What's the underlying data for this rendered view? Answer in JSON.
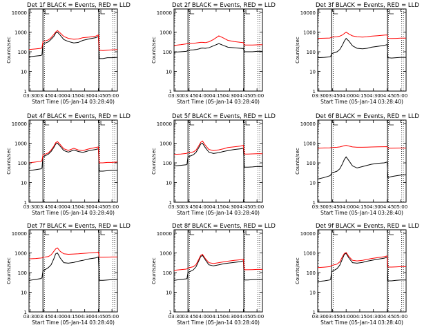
{
  "figure": {
    "xlabel": "Start Time (05-Jan-14 03:28:40)",
    "ylabel": "Counts/sec",
    "x_ticks": [
      "03:30",
      "03:45",
      "04:00",
      "04:15",
      "04:30",
      "04:45",
      "05:00"
    ],
    "y_ticks": [
      "1",
      "10",
      "100",
      "1000",
      "10000"
    ],
    "colors": {
      "events": "#000000",
      "lld": "#ff0000",
      "axes": "#000000",
      "background": "#ffffff"
    }
  },
  "chart_data": [
    {
      "type": "line",
      "title": "Det 1f BLACK = Events, RED = LLD",
      "xlabel": "Start Time (05-Jan-14 03:28:40)",
      "ylabel": "Counts/sec",
      "y_scale": "log",
      "ylim": [
        1,
        15000
      ],
      "xlim": [
        "03:28:40",
        "05:06:00"
      ],
      "x": [
        "03:28:40",
        "03:36",
        "03:42",
        "03:43",
        "03:44",
        "03:50",
        "03:53",
        "03:56",
        "03:58",
        "04:00",
        "04:03",
        "04:07",
        "04:12",
        "04:18",
        "04:23",
        "04:28",
        "04:35",
        "04:42",
        "04:45",
        "04:46",
        "04:50",
        "04:55",
        "05:00",
        "05:06"
      ],
      "series": [
        {
          "name": "Events",
          "color": "#000000",
          "values": [
            55,
            60,
            65,
            70,
            250,
            320,
            430,
            600,
            900,
            1000,
            700,
            420,
            330,
            280,
            300,
            380,
            450,
            520,
            600,
            45,
            45,
            50,
            50,
            52
          ]
        },
        {
          "name": "LLD",
          "color": "#ff0000",
          "values": [
            130,
            140,
            150,
            160,
            330,
            400,
            520,
            750,
            1000,
            1200,
            900,
            600,
            480,
            430,
            450,
            520,
            560,
            620,
            720,
            120,
            115,
            120,
            125,
            130
          ]
        }
      ]
    },
    {
      "type": "line",
      "title": "Det 2f BLACK = Events, RED = LLD",
      "xlabel": "Start Time (05-Jan-14 03:28:40)",
      "ylabel": "Counts/sec",
      "y_scale": "log",
      "ylim": [
        1,
        15000
      ],
      "xlim": [
        "03:28:40",
        "05:06:00"
      ],
      "x": [
        "03:28:40",
        "03:36",
        "03:42",
        "03:43",
        "03:44",
        "03:50",
        "03:53",
        "03:56",
        "03:58",
        "04:00",
        "04:03",
        "04:07",
        "04:12",
        "04:18",
        "04:23",
        "04:28",
        "04:35",
        "04:42",
        "04:45",
        "04:46",
        "04:50",
        "04:55",
        "05:00",
        "05:06"
      ],
      "series": [
        {
          "name": "Events",
          "color": "#000000",
          "values": [
            95,
            100,
            105,
            108,
            120,
            125,
            130,
            140,
            150,
            155,
            150,
            160,
            200,
            260,
            210,
            170,
            160,
            150,
            145,
            100,
            100,
            100,
            105,
            105
          ]
        },
        {
          "name": "LLD",
          "color": "#ff0000",
          "values": [
            210,
            230,
            250,
            260,
            260,
            270,
            280,
            290,
            300,
            300,
            290,
            320,
            420,
            650,
            500,
            380,
            330,
            300,
            290,
            220,
            220,
            220,
            225,
            230
          ]
        }
      ]
    },
    {
      "type": "line",
      "title": "Det 3f BLACK = Events, RED = LLD",
      "xlabel": "Start Time (05-Jan-14 03:28:40)",
      "ylabel": "Counts/sec",
      "y_scale": "log",
      "ylim": [
        1,
        15000
      ],
      "xlim": [
        "03:28:40",
        "05:06:00"
      ],
      "x": [
        "03:28:40",
        "03:36",
        "03:42",
        "03:43",
        "03:44",
        "03:50",
        "03:53",
        "03:56",
        "03:58",
        "04:00",
        "04:03",
        "04:07",
        "04:12",
        "04:18",
        "04:23",
        "04:28",
        "04:35",
        "04:42",
        "04:45",
        "04:46",
        "04:50",
        "04:55",
        "05:00",
        "05:06"
      ],
      "series": [
        {
          "name": "Events",
          "color": "#000000",
          "values": [
            50,
            52,
            55,
            58,
            80,
            100,
            130,
            220,
            350,
            480,
            350,
            200,
            150,
            140,
            150,
            170,
            190,
            210,
            230,
            50,
            48,
            50,
            52,
            52
          ]
        },
        {
          "name": "LLD",
          "color": "#ff0000",
          "values": [
            480,
            490,
            500,
            520,
            550,
            580,
            620,
            720,
            850,
            1000,
            800,
            640,
            580,
            560,
            580,
            620,
            660,
            700,
            720,
            480,
            470,
            480,
            490,
            490
          ]
        }
      ]
    },
    {
      "type": "line",
      "title": "Det 4f BLACK = Events, RED = LLD",
      "xlabel": "Start Time (05-Jan-14 03:28:40)",
      "ylabel": "Counts/sec",
      "y_scale": "log",
      "ylim": [
        1,
        15000
      ],
      "xlim": [
        "03:28:40",
        "05:06:00"
      ],
      "x": [
        "03:28:40",
        "03:36",
        "03:42",
        "03:43",
        "03:44",
        "03:50",
        "03:53",
        "03:56",
        "03:58",
        "04:00",
        "04:03",
        "04:07",
        "04:12",
        "04:18",
        "04:23",
        "04:28",
        "04:35",
        "04:42",
        "04:45",
        "04:46",
        "04:50",
        "04:55",
        "05:00",
        "05:06"
      ],
      "series": [
        {
          "name": "Events",
          "color": "#000000",
          "values": [
            40,
            45,
            50,
            55,
            200,
            280,
            380,
            600,
            900,
            1000,
            700,
            420,
            350,
            450,
            380,
            340,
            420,
            480,
            520,
            38,
            38,
            40,
            42,
            42
          ]
        },
        {
          "name": "LLD",
          "color": "#ff0000",
          "values": [
            100,
            110,
            120,
            130,
            250,
            320,
            450,
            700,
            1050,
            1200,
            850,
            520,
            430,
            550,
            450,
            420,
            520,
            600,
            640,
            100,
            100,
            105,
            105,
            110
          ]
        }
      ]
    },
    {
      "type": "line",
      "title": "Det 5f BLACK = Events, RED = LLD",
      "xlabel": "Start Time (05-Jan-14 03:28:40)",
      "ylabel": "Counts/sec",
      "y_scale": "log",
      "ylim": [
        1,
        15000
      ],
      "xlim": [
        "03:28:40",
        "05:06:00"
      ],
      "x": [
        "03:28:40",
        "03:36",
        "03:42",
        "03:43",
        "03:44",
        "03:50",
        "03:53",
        "03:56",
        "03:58",
        "04:00",
        "04:03",
        "04:07",
        "04:12",
        "04:18",
        "04:23",
        "04:28",
        "04:35",
        "04:42",
        "04:45",
        "04:46",
        "04:50",
        "04:55",
        "05:00",
        "05:06"
      ],
      "series": [
        {
          "name": "Events",
          "color": "#000000",
          "values": [
            70,
            75,
            80,
            85,
            200,
            260,
            350,
            600,
            900,
            1000,
            600,
            350,
            300,
            330,
            380,
            420,
            480,
            520,
            560,
            60,
            60,
            62,
            65,
            65
          ]
        },
        {
          "name": "LLD",
          "color": "#ff0000",
          "values": [
            270,
            280,
            300,
            310,
            330,
            360,
            450,
            750,
            1100,
            1300,
            800,
            480,
            420,
            460,
            520,
            600,
            660,
            720,
            780,
            280,
            280,
            285,
            290,
            290
          ]
        }
      ]
    },
    {
      "type": "line",
      "title": "Det 6f BLACK = Events, RED = LLD",
      "xlabel": "Start Time (05-Jan-14 03:28:40)",
      "ylabel": "Counts/sec",
      "y_scale": "log",
      "ylim": [
        1,
        15000
      ],
      "xlim": [
        "03:28:40",
        "05:06:00"
      ],
      "x": [
        "03:28:40",
        "03:36",
        "03:42",
        "03:43",
        "03:44",
        "03:50",
        "03:53",
        "03:56",
        "03:58",
        "04:00",
        "04:03",
        "04:07",
        "04:12",
        "04:18",
        "04:23",
        "04:28",
        "04:35",
        "04:42",
        "04:45",
        "04:46",
        "04:50",
        "04:55",
        "05:00",
        "05:06"
      ],
      "series": [
        {
          "name": "Events",
          "color": "#000000",
          "values": [
            15,
            18,
            22,
            24,
            30,
            38,
            50,
            90,
            150,
            200,
            130,
            70,
            55,
            65,
            75,
            85,
            95,
            100,
            110,
            18,
            20,
            22,
            24,
            25
          ]
        },
        {
          "name": "LLD",
          "color": "#ff0000",
          "values": [
            560,
            570,
            580,
            590,
            600,
            620,
            650,
            700,
            750,
            780,
            720,
            650,
            620,
            620,
            630,
            640,
            650,
            660,
            670,
            560,
            560,
            565,
            570,
            570
          ]
        }
      ]
    },
    {
      "type": "line",
      "title": "Det 7f BLACK = Events, RED = LLD",
      "xlabel": "Start Time (05-Jan-14 03:28:40)",
      "ylabel": "Counts/sec",
      "y_scale": "log",
      "ylim": [
        1,
        15000
      ],
      "xlim": [
        "03:28:40",
        "05:06:00"
      ],
      "x": [
        "03:28:40",
        "03:36",
        "03:42",
        "03:43",
        "03:44",
        "03:50",
        "03:53",
        "03:56",
        "03:58",
        "04:00",
        "04:03",
        "04:07",
        "04:12",
        "04:18",
        "04:23",
        "04:28",
        "04:35",
        "04:42",
        "04:45",
        "04:46",
        "04:50",
        "04:55",
        "05:00",
        "05:06"
      ],
      "series": [
        {
          "name": "Events",
          "color": "#000000",
          "values": [
            40,
            45,
            50,
            55,
            120,
            180,
            250,
            500,
            900,
            1000,
            550,
            320,
            300,
            330,
            380,
            420,
            500,
            560,
            620,
            40,
            40,
            42,
            44,
            45
          ]
        },
        {
          "name": "LLD",
          "color": "#ff0000",
          "values": [
            500,
            520,
            550,
            560,
            600,
            650,
            800,
            1200,
            1600,
            1800,
            1200,
            900,
            850,
            880,
            900,
            950,
            1000,
            1050,
            1100,
            600,
            600,
            610,
            620,
            620
          ]
        }
      ]
    },
    {
      "type": "line",
      "title": "Det 8f BLACK = Events, RED = LLD",
      "xlabel": "Start Time (05-Jan-14 03:28:40)",
      "ylabel": "Counts/sec",
      "y_scale": "log",
      "ylim": [
        1,
        15000
      ],
      "xlim": [
        "03:28:40",
        "05:06:00"
      ],
      "x": [
        "03:28:40",
        "03:36",
        "03:42",
        "03:43",
        "03:44",
        "03:50",
        "03:53",
        "03:56",
        "03:58",
        "04:00",
        "04:03",
        "04:07",
        "04:12",
        "04:18",
        "04:23",
        "04:28",
        "04:35",
        "04:42",
        "04:45",
        "04:46",
        "04:50",
        "04:55",
        "05:00",
        "05:06"
      ],
      "series": [
        {
          "name": "Events",
          "color": "#000000",
          "values": [
            40,
            45,
            48,
            50,
            100,
            140,
            200,
            400,
            650,
            750,
            450,
            250,
            220,
            250,
            280,
            300,
            330,
            360,
            400,
            42,
            42,
            44,
            45,
            45
          ]
        },
        {
          "name": "LLD",
          "color": "#ff0000",
          "values": [
            130,
            140,
            150,
            155,
            170,
            200,
            260,
            480,
            750,
            850,
            520,
            320,
            290,
            320,
            350,
            380,
            420,
            450,
            480,
            140,
            140,
            142,
            145,
            145
          ]
        }
      ]
    },
    {
      "type": "line",
      "title": "Det 9f BLACK = Events, RED = LLD",
      "xlabel": "Start Time (05-Jan-14 03:28:40)",
      "ylabel": "Counts/sec",
      "y_scale": "log",
      "ylim": [
        1,
        15000
      ],
      "xlim": [
        "03:28:40",
        "05:06:00"
      ],
      "x": [
        "03:28:40",
        "03:36",
        "03:42",
        "03:43",
        "03:44",
        "03:50",
        "03:53",
        "03:56",
        "03:58",
        "04:00",
        "04:03",
        "04:07",
        "04:12",
        "04:18",
        "04:23",
        "04:28",
        "04:35",
        "04:42",
        "04:45",
        "04:46",
        "04:50",
        "04:55",
        "05:00",
        "05:06"
      ],
      "series": [
        {
          "name": "Events",
          "color": "#000000",
          "values": [
            35,
            38,
            42,
            45,
            110,
            160,
            240,
            500,
            850,
            950,
            550,
            320,
            300,
            330,
            380,
            420,
            480,
            540,
            600,
            38,
            38,
            40,
            42,
            42
          ]
        },
        {
          "name": "LLD",
          "color": "#ff0000",
          "values": [
            180,
            190,
            200,
            210,
            230,
            270,
            350,
            650,
            950,
            1050,
            650,
            420,
            390,
            420,
            470,
            520,
            580,
            640,
            700,
            190,
            190,
            195,
            200,
            200
          ]
        }
      ]
    }
  ]
}
